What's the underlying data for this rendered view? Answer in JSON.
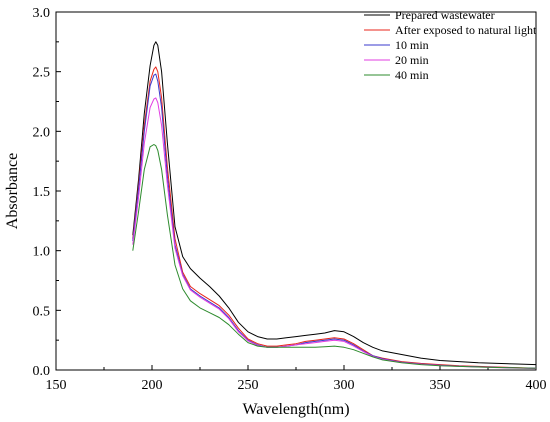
{
  "chart_data": {
    "type": "line",
    "xlabel": "Wavelength(nm)",
    "ylabel": "Absorbance",
    "xlim": [
      150,
      400
    ],
    "ylim": [
      0,
      3.0
    ],
    "xticks": [
      150,
      200,
      250,
      300,
      350,
      400
    ],
    "yticks": [
      0.0,
      0.5,
      1.0,
      1.5,
      2.0,
      2.5,
      3.0
    ],
    "xtick_labels": [
      "150",
      "200",
      "250",
      "300",
      "350",
      "400"
    ],
    "ytick_labels": [
      "0.0",
      "0.5",
      "1.0",
      "1.5",
      "2.0",
      "2.5",
      "3.0"
    ],
    "grid": false,
    "legend_position": "top-right",
    "series": [
      {
        "name": "Prepared wastewater",
        "color": "#000000",
        "x": [
          190,
          193,
          196,
          199,
          201,
          202,
          203,
          205,
          208,
          212,
          216,
          220,
          225,
          230,
          235,
          240,
          245,
          250,
          255,
          260,
          265,
          270,
          275,
          280,
          285,
          290,
          295,
          300,
          305,
          310,
          315,
          320,
          330,
          340,
          350,
          360,
          370,
          380,
          390,
          400
        ],
        "y": [
          1.13,
          1.6,
          2.15,
          2.55,
          2.72,
          2.75,
          2.72,
          2.5,
          1.9,
          1.2,
          0.95,
          0.85,
          0.77,
          0.7,
          0.62,
          0.52,
          0.4,
          0.32,
          0.28,
          0.26,
          0.26,
          0.27,
          0.28,
          0.29,
          0.3,
          0.31,
          0.33,
          0.32,
          0.28,
          0.23,
          0.19,
          0.16,
          0.13,
          0.1,
          0.08,
          0.07,
          0.06,
          0.055,
          0.05,
          0.045
        ]
      },
      {
        "name": "After exposed to natural light",
        "color": "#e8261b",
        "x": [
          190,
          193,
          196,
          199,
          201,
          202,
          203,
          205,
          208,
          212,
          216,
          220,
          225,
          230,
          235,
          240,
          245,
          250,
          255,
          260,
          265,
          270,
          275,
          280,
          285,
          290,
          295,
          300,
          305,
          310,
          315,
          320,
          330,
          340,
          350,
          360,
          370,
          380,
          390,
          400
        ],
        "y": [
          1.1,
          1.55,
          2.05,
          2.42,
          2.52,
          2.54,
          2.5,
          2.28,
          1.7,
          1.1,
          0.82,
          0.7,
          0.64,
          0.59,
          0.54,
          0.46,
          0.35,
          0.26,
          0.22,
          0.2,
          0.2,
          0.21,
          0.22,
          0.24,
          0.25,
          0.26,
          0.27,
          0.26,
          0.22,
          0.17,
          0.12,
          0.1,
          0.07,
          0.055,
          0.045,
          0.035,
          0.03,
          0.025,
          0.02,
          0.015
        ]
      },
      {
        "name": "10 min",
        "color": "#3a3acc",
        "x": [
          190,
          193,
          196,
          199,
          201,
          202,
          203,
          205,
          208,
          212,
          216,
          220,
          225,
          230,
          235,
          240,
          245,
          250,
          255,
          260,
          265,
          270,
          275,
          280,
          285,
          290,
          295,
          300,
          305,
          310,
          315,
          320,
          330,
          340,
          350,
          360,
          370,
          380,
          390,
          400
        ],
        "y": [
          1.08,
          1.52,
          2.0,
          2.38,
          2.47,
          2.48,
          2.42,
          2.2,
          1.62,
          1.05,
          0.8,
          0.68,
          0.62,
          0.57,
          0.52,
          0.44,
          0.33,
          0.25,
          0.21,
          0.19,
          0.19,
          0.2,
          0.21,
          0.23,
          0.24,
          0.25,
          0.26,
          0.25,
          0.21,
          0.16,
          0.12,
          0.095,
          0.065,
          0.05,
          0.04,
          0.032,
          0.027,
          0.022,
          0.018,
          0.014
        ]
      },
      {
        "name": "20 min",
        "color": "#e23ee2",
        "x": [
          190,
          193,
          196,
          199,
          201,
          202,
          203,
          205,
          208,
          212,
          216,
          220,
          225,
          230,
          235,
          240,
          245,
          250,
          255,
          260,
          265,
          270,
          275,
          280,
          285,
          290,
          295,
          300,
          305,
          310,
          315,
          320,
          330,
          340,
          350,
          360,
          370,
          380,
          390,
          400
        ],
        "y": [
          1.05,
          1.45,
          1.9,
          2.2,
          2.27,
          2.28,
          2.24,
          2.05,
          1.55,
          1.02,
          0.79,
          0.67,
          0.61,
          0.56,
          0.51,
          0.43,
          0.32,
          0.245,
          0.205,
          0.19,
          0.19,
          0.2,
          0.21,
          0.22,
          0.23,
          0.24,
          0.25,
          0.24,
          0.2,
          0.155,
          0.115,
          0.09,
          0.063,
          0.048,
          0.038,
          0.03,
          0.025,
          0.02,
          0.016,
          0.012
        ]
      },
      {
        "name": "40 min",
        "color": "#2e8b2e",
        "x": [
          190,
          193,
          196,
          199,
          201,
          202,
          203,
          205,
          208,
          212,
          216,
          220,
          225,
          230,
          235,
          240,
          245,
          250,
          255,
          260,
          265,
          270,
          275,
          280,
          285,
          290,
          295,
          300,
          305,
          310,
          315,
          320,
          330,
          340,
          350,
          360,
          370,
          380,
          390,
          400
        ],
        "y": [
          1.0,
          1.33,
          1.68,
          1.87,
          1.89,
          1.88,
          1.84,
          1.68,
          1.3,
          0.88,
          0.68,
          0.58,
          0.52,
          0.48,
          0.44,
          0.38,
          0.3,
          0.23,
          0.2,
          0.19,
          0.19,
          0.19,
          0.19,
          0.19,
          0.19,
          0.195,
          0.2,
          0.19,
          0.17,
          0.14,
          0.11,
          0.085,
          0.06,
          0.045,
          0.036,
          0.03,
          0.025,
          0.021,
          0.018,
          0.015
        ]
      }
    ]
  }
}
